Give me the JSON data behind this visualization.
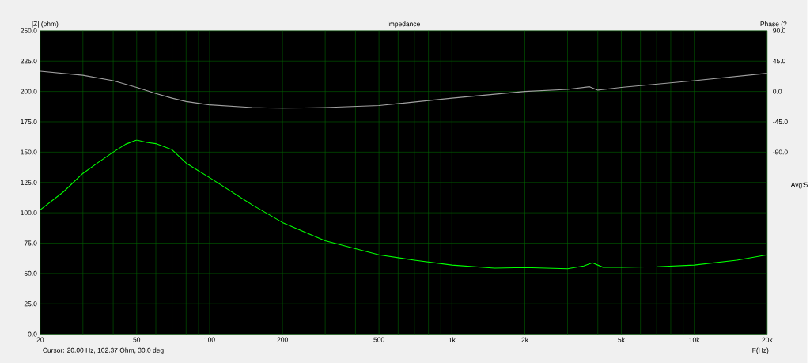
{
  "chart_data": {
    "type": "line",
    "title": "Impedance",
    "xlabel": "F(Hz)",
    "ylabel": "|Z| (ohm)",
    "y2label": "Phase (?",
    "annotations": [
      "Avg:5",
      "Cursor: 20.00 Hz, 102.37 Ohm, 30.0 deg"
    ],
    "log": "x",
    "grid": true,
    "xlim": [
      20,
      20000
    ],
    "ylim": [
      0,
      250
    ],
    "y2lim": [
      -360,
      90
    ],
    "xticks": [
      20,
      {
        "value": 30,
        "label": null
      },
      {
        "value": 40,
        "label": null
      },
      50,
      {
        "value": 60,
        "label": null
      },
      {
        "value": 70,
        "label": null
      },
      {
        "value": 80,
        "label": null
      },
      {
        "value": 90,
        "label": null
      },
      100,
      200,
      {
        "value": 300,
        "label": null
      },
      {
        "value": 400,
        "label": null
      },
      500,
      {
        "value": 600,
        "label": null
      },
      {
        "value": 700,
        "label": null
      },
      {
        "value": 800,
        "label": null
      },
      {
        "value": 900,
        "label": null
      },
      {
        "value": 1000,
        "label": "1k"
      },
      {
        "value": 2000,
        "label": "2k"
      },
      {
        "value": 3000,
        "label": null
      },
      {
        "value": 4000,
        "label": null
      },
      {
        "value": 5000,
        "label": "5k"
      },
      {
        "value": 6000,
        "label": null
      },
      {
        "value": 7000,
        "label": null
      },
      {
        "value": 8000,
        "label": null
      },
      {
        "value": 9000,
        "label": null
      },
      {
        "value": 10000,
        "label": "10k"
      },
      {
        "value": 20000,
        "label": "20k"
      }
    ],
    "yticks": [
      {
        "value": 0,
        "label": "0.0"
      },
      {
        "value": 25,
        "label": "25.0"
      },
      {
        "value": 50,
        "label": "50.0"
      },
      {
        "value": 75,
        "label": "75.0"
      },
      {
        "value": 100,
        "label": "100.0"
      },
      {
        "value": 125,
        "label": "125.0"
      },
      {
        "value": 150,
        "label": "150.0"
      },
      {
        "value": 175,
        "label": "175.0"
      },
      {
        "value": 200,
        "label": "200.0"
      },
      {
        "value": 225,
        "label": "225.0"
      },
      {
        "value": 250,
        "label": "250.0"
      }
    ],
    "y2ticks": [
      {
        "value": -90,
        "label": "-90.0"
      },
      {
        "value": -45,
        "label": "-45.0"
      },
      {
        "value": 0,
        "label": "0.0"
      },
      {
        "value": 45,
        "label": "45.0"
      },
      {
        "value": 90,
        "label": "90.0"
      }
    ],
    "series": [
      {
        "color": "#00ff00",
        "x": [
          20,
          25,
          30,
          35,
          40,
          45,
          50,
          55,
          60,
          70,
          80,
          100,
          150,
          200,
          300,
          500,
          700,
          1000,
          1500,
          2000,
          3000,
          3500,
          3800,
          4200,
          5000,
          7000,
          10000,
          15000,
          20000
        ],
        "values": [
          102.4,
          117.5,
          132.5,
          142,
          150,
          156.5,
          160,
          158,
          157,
          152,
          141,
          129,
          106.5,
          92,
          77,
          65.4,
          61,
          57,
          54.5,
          55,
          54,
          56.3,
          58.9,
          55.2,
          55.2,
          55.6,
          57,
          61,
          65.4
        ]
      },
      {
        "color": "#a0a0a0",
        "axis": "y2",
        "x": [
          20,
          30,
          40,
          50,
          60,
          70,
          80,
          100,
          150,
          200,
          300,
          500,
          1000,
          2000,
          3000,
          3700,
          4000,
          5000,
          10000,
          20000
        ],
        "values": [
          30,
          24,
          16,
          6,
          -3,
          -10,
          -15,
          -20,
          -24,
          -25,
          -24,
          -21,
          -10,
          0,
          3,
          7,
          2,
          6,
          16,
          27
        ]
      }
    ]
  }
}
